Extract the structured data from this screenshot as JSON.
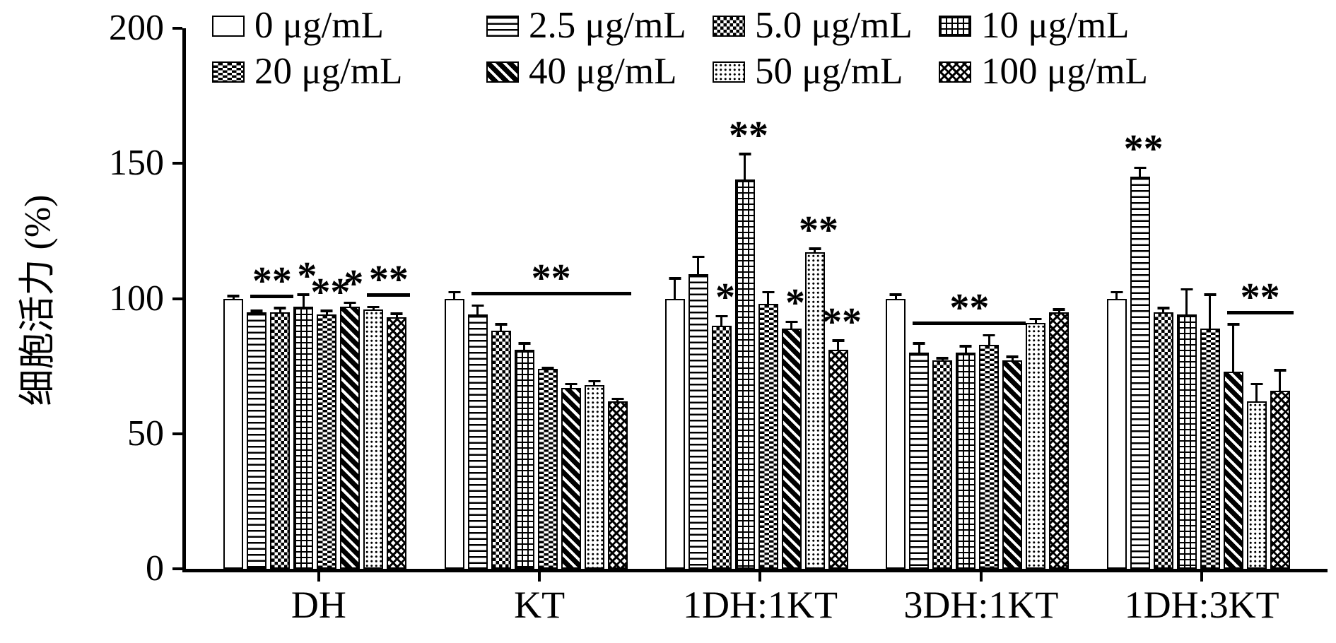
{
  "chart_data": {
    "type": "bar",
    "title": "",
    "ylabel": "细胞活力 (%)",
    "xlabel": "",
    "ylim": [
      0,
      200
    ],
    "yticks": [
      0,
      50,
      100,
      150,
      200
    ],
    "grid": false,
    "legend_position": "top",
    "categories": [
      "DH",
      "KT",
      "1DH:1KT",
      "3DH:1KT",
      "1DH:3KT"
    ],
    "series": [
      {
        "name": "0 μg/mL",
        "pattern": "plain",
        "values": [
          100,
          100,
          100,
          100,
          100
        ],
        "errors": [
          1.5,
          3,
          8,
          2,
          3
        ]
      },
      {
        "name": "2.5 μg/mL",
        "pattern": "hlines",
        "values": [
          95,
          94,
          109,
          80,
          145
        ],
        "errors": [
          1,
          4,
          7,
          4,
          4
        ]
      },
      {
        "name": "5.0 μg/mL",
        "pattern": "checker",
        "values": [
          95,
          88,
          90,
          77,
          95
        ],
        "errors": [
          2,
          3,
          4,
          1.5,
          2
        ]
      },
      {
        "name": "10 μg/mL",
        "pattern": "grid",
        "values": [
          97,
          81,
          144,
          80,
          94
        ],
        "errors": [
          5,
          3,
          10,
          3,
          10
        ]
      },
      {
        "name": "20 μg/mL",
        "pattern": "bricks",
        "values": [
          94,
          74,
          98,
          83,
          89
        ],
        "errors": [
          2,
          1,
          5,
          4,
          13
        ]
      },
      {
        "name": "40 μg/mL",
        "pattern": "diag",
        "values": [
          97,
          67,
          89,
          77,
          73
        ],
        "errors": [
          2,
          2,
          3,
          2,
          18
        ]
      },
      {
        "name": "50 μg/mL",
        "pattern": "dots",
        "values": [
          96,
          68,
          117,
          91,
          62
        ],
        "errors": [
          1.5,
          2,
          2,
          2,
          7
        ]
      },
      {
        "name": "100 μg/mL",
        "pattern": "cross",
        "values": [
          93,
          62,
          81,
          95,
          66
        ],
        "errors": [
          2,
          1.5,
          4,
          1.5,
          8
        ]
      }
    ],
    "annotations": [
      {
        "group": 0,
        "from": 1,
        "to": 2,
        "label": "**",
        "line": true
      },
      {
        "group": 0,
        "from": 3,
        "to": 3,
        "label": "*",
        "line": false
      },
      {
        "group": 0,
        "from": 4,
        "to": 4,
        "label": "**",
        "line": false
      },
      {
        "group": 0,
        "from": 5,
        "to": 5,
        "label": "*",
        "line": false
      },
      {
        "group": 0,
        "from": 6,
        "to": 7,
        "label": "**",
        "line": true
      },
      {
        "group": 1,
        "from": 1,
        "to": 7,
        "label": "**",
        "line": true
      },
      {
        "group": 2,
        "from": 2,
        "to": 2,
        "label": "*",
        "line": false
      },
      {
        "group": 2,
        "from": 3,
        "to": 3,
        "label": "**",
        "line": false
      },
      {
        "group": 2,
        "from": 5,
        "to": 5,
        "label": "*",
        "line": false
      },
      {
        "group": 2,
        "from": 6,
        "to": 6,
        "label": "**",
        "line": false
      },
      {
        "group": 2,
        "from": 7,
        "to": 7,
        "label": "**",
        "line": false
      },
      {
        "group": 3,
        "from": 1,
        "to": 5,
        "label": "**",
        "line": true
      },
      {
        "group": 4,
        "from": 1,
        "to": 1,
        "label": "**",
        "line": false
      },
      {
        "group": 4,
        "from": 5,
        "to": 7,
        "label": "**",
        "line": true
      }
    ]
  }
}
